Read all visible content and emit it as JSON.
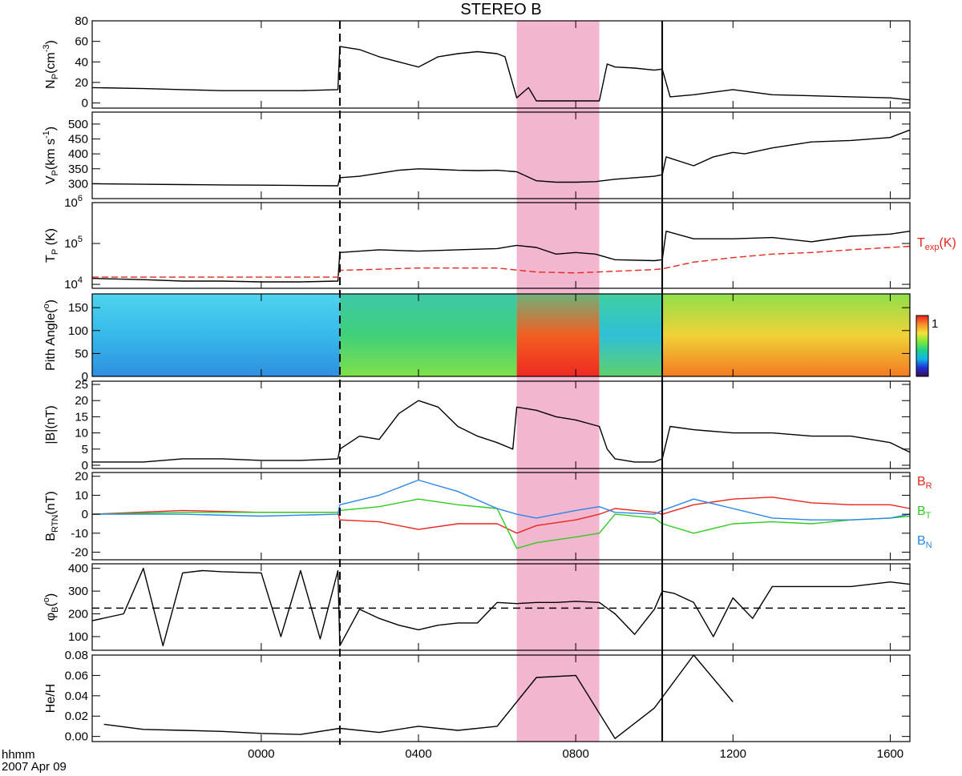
{
  "chart_data": {
    "type": "line",
    "title": "STEREO B",
    "time_axis": {
      "unit_label": "hhmm",
      "date_label": "2007 Apr 09",
      "range_hours": [
        -4.3,
        16.5
      ],
      "tick_labels": [
        "0000",
        "0400",
        "0800",
        "1200",
        "1600"
      ],
      "tick_hours": [
        0,
        4,
        8,
        12,
        16
      ]
    },
    "markers": {
      "shock_dashed_line_hour": 2.0,
      "boundary_solid_line_hour": 10.2,
      "shaded_interval_hours": [
        6.5,
        8.6
      ],
      "shaded_color": "#f2b6cf"
    },
    "panels": [
      {
        "id": "np",
        "ylabel_main": "N",
        "ylabel_sub": "P",
        "ylabel_tail": "(cm",
        "ylabel_sup": "-3",
        "ylabel_end": ")",
        "ylim": [
          -5,
          80
        ],
        "yticks": [
          "0",
          "20",
          "40",
          "60",
          "80"
        ],
        "ytick_values": [
          0,
          20,
          40,
          60,
          80
        ],
        "series": [
          {
            "color": "#000000",
            "x": [
              -4.3,
              -3,
              -2,
              -1,
              0,
              1,
              1.95,
              2.0,
              2.5,
              3.0,
              3.5,
              4.0,
              4.5,
              5.0,
              5.5,
              6.0,
              6.2,
              6.5,
              6.8,
              7.0,
              7.5,
              8.0,
              8.6,
              8.8,
              9.0,
              9.5,
              10.0,
              10.2,
              10.4,
              11,
              12,
              13,
              14,
              15,
              16,
              16.5
            ],
            "y": [
              15,
              14,
              13,
              12,
              12,
              12,
              13,
              55,
              52,
              45,
              40,
              35,
              45,
              48,
              50,
              48,
              45,
              5,
              15,
              2,
              2,
              2,
              2,
              38,
              35,
              34,
              32,
              33,
              6,
              8,
              13,
              8,
              7,
              6,
              5,
              3
            ]
          }
        ]
      },
      {
        "id": "vp",
        "ylabel_main": "V",
        "ylabel_sub": "P",
        "ylabel_tail": "(km s",
        "ylabel_sup": "-1",
        "ylabel_end": ")",
        "ylim": [
          250,
          540
        ],
        "yticks": [
          "300",
          "350",
          "400",
          "450",
          "500"
        ],
        "ytick_values": [
          300,
          350,
          400,
          450,
          500
        ],
        "series": [
          {
            "color": "#000000",
            "x": [
              -4.3,
              -3,
              -2,
              -1,
              0,
              1,
              1.95,
              2.0,
              2.5,
              3.0,
              3.5,
              4.0,
              4.5,
              5.0,
              5.5,
              6.0,
              6.5,
              7.0,
              7.5,
              8.0,
              8.5,
              9.0,
              9.5,
              10.0,
              10.2,
              10.3,
              11,
              11.5,
              12,
              12.3,
              13,
              14,
              15,
              16,
              16.5
            ],
            "y": [
              300,
              298,
              297,
              296,
              295,
              294,
              293,
              320,
              325,
              335,
              345,
              350,
              348,
              345,
              344,
              345,
              340,
              310,
              305,
              305,
              307,
              315,
              320,
              325,
              330,
              390,
              360,
              390,
              405,
              400,
              420,
              440,
              445,
              455,
              480
            ]
          }
        ]
      },
      {
        "id": "tp",
        "ylabel_main": "T",
        "ylabel_sub": "P",
        "ylabel_tail": " (K)",
        "scale": "log",
        "ylim": [
          8000,
          1000000
        ],
        "yticks": [
          "10",
          "10",
          "10"
        ],
        "ytick_exponents": [
          "4",
          "5",
          "6"
        ],
        "ytick_values": [
          10000,
          100000,
          1000000
        ],
        "right_label": {
          "main": "T",
          "sub": "exp",
          "tail": "(K)",
          "color": "#e8261c"
        },
        "series": [
          {
            "color": "#000000",
            "x": [
              -4.3,
              -3,
              -2,
              -1,
              0,
              1,
              1.95,
              2.0,
              3.0,
              4.0,
              5.0,
              6.0,
              6.5,
              7.0,
              7.5,
              8.0,
              8.5,
              9.0,
              10.0,
              10.2,
              10.3,
              11,
              12,
              13,
              14,
              15,
              16,
              16.5
            ],
            "y": [
              14000,
              13000,
              12000,
              12000,
              11500,
              11500,
              12000,
              60000,
              70000,
              65000,
              70000,
              75000,
              90000,
              80000,
              55000,
              60000,
              55000,
              40000,
              38000,
              40000,
              200000,
              130000,
              130000,
              140000,
              110000,
              150000,
              170000,
              200000
            ]
          },
          {
            "color": "#e8261c",
            "dashed": true,
            "x": [
              -4.3,
              -2,
              0,
              1.95,
              2.0,
              4,
              6,
              7,
              8,
              10,
              10.2,
              11,
              12,
              13,
              14,
              15,
              16,
              16.5
            ],
            "y": [
              15000,
              15000,
              15000,
              15000,
              22000,
              25000,
              25000,
              20000,
              19000,
              23000,
              24000,
              35000,
              45000,
              55000,
              60000,
              70000,
              80000,
              85000
            ]
          }
        ]
      },
      {
        "id": "pad",
        "type": "heatmap",
        "ylabel_main": "Pith Angle(",
        "ylabel_sup": "o",
        "ylabel_end": ")",
        "ylim": [
          0,
          180
        ],
        "yticks": [
          "0",
          "50",
          "100",
          "150"
        ],
        "ytick_values": [
          0,
          50,
          100,
          150
        ],
        "colorbar_tick": "1",
        "colorbar_colors": [
          "#3a0f52",
          "#1f2fd6",
          "#12b4e8",
          "#1fd18a",
          "#7fe83a",
          "#f5e13a",
          "#f58c2a",
          "#e81f1f"
        ],
        "segments": [
          {
            "x0": -4.3,
            "x1": 2.0,
            "colors": [
              "#2f8fe0",
              "#36b9ea",
              "#4fd3ee"
            ]
          },
          {
            "x0": 2.0,
            "x1": 6.5,
            "colors": [
              "#7fe04a",
              "#3fd07a",
              "#3ec8a8"
            ]
          },
          {
            "x0": 6.5,
            "x1": 8.6,
            "colors": [
              "#ee2a22",
              "#f25e22",
              "#6fb07a"
            ]
          },
          {
            "x0": 8.6,
            "x1": 10.2,
            "colors": [
              "#5fd06a",
              "#2fc0d8",
              "#3fd0a0"
            ]
          },
          {
            "x0": 10.2,
            "x1": 16.5,
            "colors": [
              "#f27b22",
              "#f0d238",
              "#8fe04a"
            ]
          }
        ]
      },
      {
        "id": "b",
        "ylabel_main": "|B|(nT)",
        "ylim": [
          -1,
          26
        ],
        "yticks": [
          "0",
          "5",
          "10",
          "15",
          "20",
          "25"
        ],
        "ytick_values": [
          0,
          5,
          10,
          15,
          20,
          25
        ],
        "series": [
          {
            "color": "#000000",
            "x": [
              -4.3,
              -3,
              -2,
              -1,
              0,
              1,
              1.95,
              2.0,
              2.5,
              3.0,
              3.5,
              4.0,
              4.5,
              5.0,
              5.5,
              6.0,
              6.4,
              6.5,
              7.0,
              7.5,
              8.0,
              8.6,
              8.8,
              9.0,
              9.5,
              10.0,
              10.2,
              10.4,
              11,
              12,
              13,
              14,
              15,
              16,
              16.5
            ],
            "y": [
              1,
              1,
              2,
              2,
              1.5,
              1.5,
              2,
              5,
              9,
              8,
              16,
              20,
              18,
              12,
              9,
              7,
              5,
              18,
              17,
              15,
              14,
              12,
              5,
              2,
              1,
              1,
              2,
              12,
              11,
              10,
              10,
              9,
              9,
              7,
              4
            ]
          }
        ]
      },
      {
        "id": "brtn",
        "ylabel_main": "B",
        "ylabel_sub": "RTN",
        "ylabel_tail": "(nT)",
        "ylim": [
          -24,
          22
        ],
        "yticks": [
          "-20",
          "-10",
          "0",
          "10",
          "20"
        ],
        "ytick_values": [
          -20,
          -10,
          0,
          10,
          20
        ],
        "legend": [
          {
            "main": "B",
            "sub": "R",
            "color": "#e8261c"
          },
          {
            "main": "B",
            "sub": "T",
            "color": "#2fcc1f"
          },
          {
            "main": "B",
            "sub": "N",
            "color": "#2a86e8"
          }
        ],
        "series": [
          {
            "name": "B",
            "color": "#e8261c",
            "x": [
              -4.3,
              -2,
              0,
              1.95,
              2.0,
              3.0,
              4.0,
              5.0,
              6.0,
              6.5,
              7.0,
              8.0,
              8.6,
              9.0,
              10.0,
              10.2,
              11,
              12,
              13,
              14,
              15,
              16,
              16.5
            ],
            "y": [
              0,
              2,
              1,
              1,
              -3,
              -4,
              -8,
              -5,
              -5,
              -10,
              -6,
              -3,
              0,
              3,
              1,
              0,
              5,
              8,
              9,
              6,
              5,
              5,
              3
            ]
          },
          {
            "name": "B",
            "color": "#2fcc1f",
            "x": [
              -4.3,
              -2,
              0,
              1.95,
              2.0,
              3.0,
              4.0,
              5.0,
              6.0,
              6.5,
              7.0,
              8.0,
              8.6,
              9.0,
              10.0,
              10.2,
              11,
              12,
              13,
              14,
              15,
              16,
              16.5
            ],
            "y": [
              0,
              1,
              1,
              1,
              2,
              4,
              8,
              5,
              3,
              -18,
              -15,
              -12,
              -10,
              0,
              -2,
              -5,
              -10,
              -5,
              -4,
              -5,
              -3,
              -2,
              -1
            ]
          },
          {
            "name": "B",
            "color": "#2a86e8",
            "x": [
              -4.3,
              -2,
              0,
              1.95,
              2.0,
              3.0,
              4.0,
              5.0,
              6.0,
              6.5,
              7.0,
              8.0,
              8.6,
              9.0,
              10.0,
              10.2,
              11,
              12,
              13,
              14,
              15,
              16,
              16.5
            ],
            "y": [
              0,
              0,
              -1,
              0,
              5,
              10,
              18,
              12,
              3,
              0,
              -2,
              2,
              4,
              1,
              0,
              2,
              8,
              3,
              -2,
              -3,
              -3,
              -2,
              0
            ]
          }
        ]
      },
      {
        "id": "phi",
        "ylabel_main": "φ",
        "ylabel_sub": "B",
        "ylabel_tail": "(",
        "ylabel_sup": "o",
        "ylabel_end": ")",
        "ylim": [
          40,
          420
        ],
        "yticks": [
          "100",
          "200",
          "300",
          "400"
        ],
        "ytick_values": [
          100,
          200,
          300,
          400
        ],
        "reference_line": 225,
        "series": [
          {
            "color": "#000000",
            "x": [
              -4.3,
              -3.5,
              -3.0,
              -2.5,
              -2.0,
              -1.5,
              -1.0,
              0,
              0.5,
              1.0,
              1.5,
              1.95,
              2.0,
              2.5,
              3.0,
              3.5,
              4.0,
              4.5,
              5.0,
              5.5,
              6.0,
              6.5,
              7.0,
              7.5,
              8.0,
              8.6,
              9.0,
              9.5,
              10.0,
              10.2,
              10.5,
              11.0,
              11.5,
              12.0,
              12.5,
              13.0,
              14.0,
              15.0,
              16.0,
              16.5
            ],
            "y": [
              170,
              200,
              400,
              60,
              380,
              390,
              385,
              380,
              100,
              390,
              90,
              390,
              60,
              220,
              180,
              150,
              130,
              150,
              160,
              160,
              250,
              245,
              250,
              250,
              255,
              250,
              200,
              110,
              220,
              300,
              290,
              250,
              100,
              270,
              180,
              320,
              320,
              320,
              340,
              330
            ]
          }
        ]
      },
      {
        "id": "he",
        "ylabel_main": "He/H",
        "ylim": [
          -0.005,
          0.08
        ],
        "yticks": [
          "0.00",
          "0.02",
          "0.04",
          "0.06",
          "0.08"
        ],
        "ytick_values": [
          0,
          0.02,
          0.04,
          0.06,
          0.08
        ],
        "series": [
          {
            "color": "#000000",
            "x": [
              -4,
              -3,
              -2,
              -1,
              0,
              1,
              2,
              3,
              4,
              5,
              6,
              7,
              8,
              9,
              10,
              11,
              12
            ],
            "y": [
              0.012,
              0.007,
              0.006,
              0.005,
              0.003,
              0.002,
              0.008,
              0.004,
              0.01,
              0.006,
              0.01,
              0.058,
              0.06,
              -0.002,
              0.028,
              0.08,
              0.034
            ]
          }
        ]
      }
    ]
  }
}
